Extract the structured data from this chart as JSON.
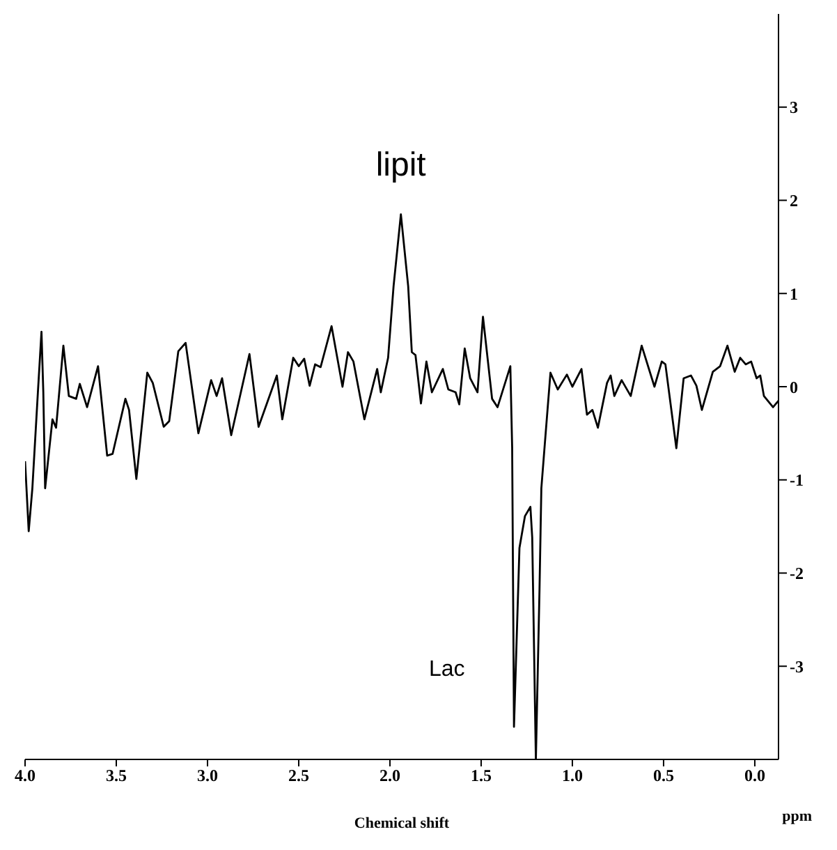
{
  "chart_data": {
    "type": "line",
    "xlabel": "Chemical shift",
    "color": "#000000",
    "annotations": [
      {
        "text": "lipit",
        "x": 1.94,
        "y": 1.85
      },
      "Lac",
      "ppm"
    ],
    "x": [
      4.0,
      3.98,
      3.96,
      3.93,
      3.91,
      3.9,
      3.89,
      3.85,
      3.83,
      3.79,
      3.76,
      3.72,
      3.7,
      3.66,
      3.6,
      3.55,
      3.52,
      3.45,
      3.43,
      3.39,
      3.33,
      3.3,
      3.24,
      3.21,
      3.16,
      3.12,
      3.05,
      2.98,
      2.95,
      2.92,
      2.87,
      2.77,
      2.72,
      2.62,
      2.59,
      2.53,
      2.5,
      2.47,
      2.44,
      2.41,
      2.38,
      2.32,
      2.26,
      2.23,
      2.2,
      2.14,
      2.07,
      2.05,
      2.01,
      1.98,
      1.94,
      1.9,
      1.88,
      1.86,
      1.83,
      1.8,
      1.77,
      1.71,
      1.68,
      1.64,
      1.62,
      1.59,
      1.56,
      1.52,
      1.49,
      1.44,
      1.41,
      1.34,
      1.33,
      1.32,
      1.29,
      1.26,
      1.23,
      1.22,
      1.2,
      1.18,
      1.17,
      1.15,
      1.12,
      1.08,
      1.03,
      1.0,
      0.95,
      0.92,
      0.89,
      0.86,
      0.81,
      0.79,
      0.77,
      0.73,
      0.68,
      0.62,
      0.55,
      0.51,
      0.49,
      0.43,
      0.39,
      0.35,
      0.32,
      0.29,
      0.23,
      0.19,
      0.15,
      0.11,
      0.08,
      0.05,
      0.02,
      -0.01,
      -0.03,
      -0.05,
      -0.1,
      -0.13
    ],
    "values": [
      -0.8,
      -1.55,
      -1.09,
      -0.07,
      0.59,
      -0.06,
      -1.09,
      -0.35,
      -0.44,
      0.44,
      -0.1,
      -0.13,
      0.03,
      -0.22,
      0.22,
      -0.74,
      -0.72,
      -0.13,
      -0.25,
      -0.99,
      0.15,
      0.04,
      -0.43,
      -0.37,
      0.38,
      0.47,
      -0.5,
      0.07,
      -0.1,
      0.09,
      -0.52,
      0.35,
      -0.43,
      0.12,
      -0.35,
      0.31,
      0.22,
      0.3,
      0.01,
      0.24,
      0.21,
      0.65,
      0.0,
      0.37,
      0.27,
      -0.35,
      0.19,
      -0.06,
      0.31,
      1.08,
      1.85,
      1.08,
      0.37,
      0.34,
      -0.18,
      0.27,
      -0.06,
      0.19,
      -0.03,
      -0.06,
      -0.19,
      0.41,
      0.09,
      -0.06,
      0.75,
      -0.13,
      -0.22,
      0.22,
      -0.65,
      -3.65,
      -1.73,
      -1.39,
      -1.29,
      -1.62,
      -4.0,
      -2.17,
      -1.09,
      -0.59,
      0.15,
      -0.03,
      0.13,
      0.0,
      0.19,
      -0.3,
      -0.25,
      -0.44,
      0.04,
      0.12,
      -0.1,
      0.07,
      -0.1,
      0.44,
      0.0,
      0.27,
      0.24,
      -0.66,
      0.09,
      0.12,
      0.01,
      -0.25,
      0.16,
      0.22,
      0.44,
      0.16,
      0.31,
      0.24,
      0.27,
      0.09,
      0.12,
      -0.1,
      -0.22,
      -0.15
    ],
    "xlim": [
      4.0,
      -0.13
    ],
    "ylim": [
      -4,
      4
    ],
    "xticks": [
      {
        "value": 4,
        "label": "4.0"
      },
      3.5,
      {
        "value": 3,
        "label": "3.0"
      },
      2.5,
      {
        "value": 2,
        "label": "2.0"
      },
      1.5,
      {
        "value": 1,
        "label": "1.0"
      },
      0.5,
      {
        "value": 0,
        "label": "0.0"
      }
    ],
    "yticks": [
      3,
      2,
      1,
      0,
      -1,
      -2,
      -3
    ]
  }
}
